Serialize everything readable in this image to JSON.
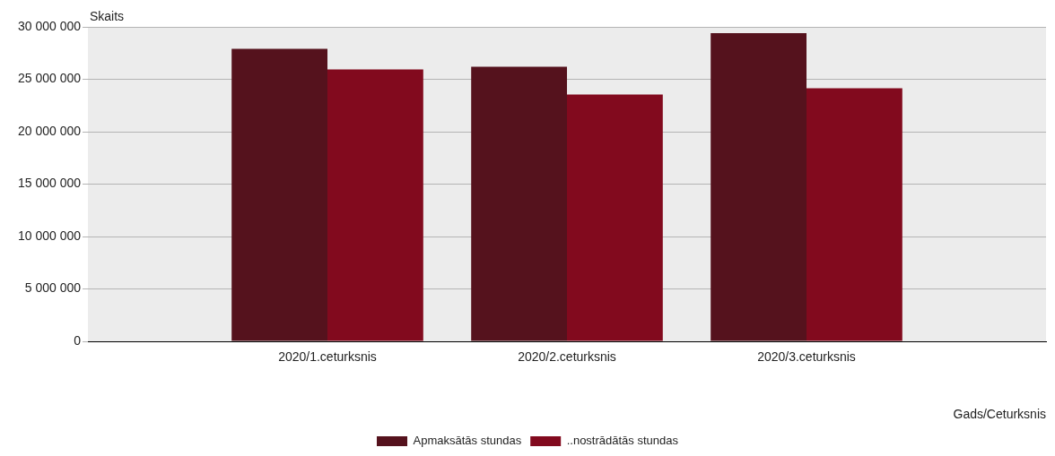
{
  "chart_data": {
    "type": "bar",
    "ylabel": "Skaits",
    "xlabel": "Gads/Ceturksnis",
    "categories": [
      null,
      "2020/1.ceturksnis",
      "2020/2.ceturksnis",
      "2020/3.ceturksnis",
      null
    ],
    "series": [
      {
        "name": "Apmaksātās stundas",
        "color": "#55121d",
        "values": [
          null,
          27900000,
          26200000,
          29400000,
          null
        ]
      },
      {
        "name": "..nostrādātās stundas",
        "color": "#820a1e",
        "values": [
          null,
          25950000,
          23550000,
          24150000,
          null
        ]
      }
    ],
    "ylim": [
      0,
      30000000
    ],
    "yticks": [
      0,
      5000000,
      10000000,
      15000000,
      20000000,
      25000000,
      30000000
    ],
    "grid": "y",
    "legend": "bottom"
  }
}
